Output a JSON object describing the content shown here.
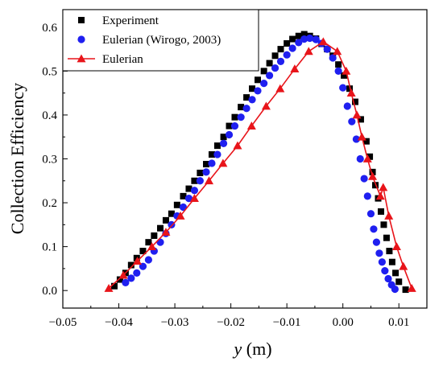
{
  "chart_data": {
    "type": "scatter",
    "xlabel": {
      "symbol": "y",
      "unit": " (m)"
    },
    "ylabel": "Collection Efficiency",
    "xlim": [
      -0.05,
      0.015
    ],
    "ylim": [
      -0.04,
      0.64
    ],
    "xticks": [
      -0.05,
      -0.04,
      -0.03,
      -0.02,
      -0.01,
      0.0,
      0.01
    ],
    "xtick_labels": [
      "−0.05",
      "−0.04",
      "−0.03",
      "−0.02",
      "−0.01",
      "0.00",
      "0.01"
    ],
    "yticks": [
      0.0,
      0.1,
      0.2,
      0.3,
      0.4,
      0.5,
      0.6
    ],
    "ytick_labels": [
      "0.0",
      "0.1",
      "0.2",
      "0.3",
      "0.4",
      "0.5",
      "0.6"
    ],
    "grid": false,
    "legend_position": "top-left",
    "series": [
      {
        "name": "Experiment",
        "marker": "square",
        "color": "#000000",
        "line": false,
        "points": [
          [
            -0.0408,
            0.01
          ],
          [
            -0.0398,
            0.025
          ],
          [
            -0.0388,
            0.04
          ],
          [
            -0.0378,
            0.058
          ],
          [
            -0.0368,
            0.074
          ],
          [
            -0.0357,
            0.09
          ],
          [
            -0.0347,
            0.11
          ],
          [
            -0.0337,
            0.125
          ],
          [
            -0.0326,
            0.142
          ],
          [
            -0.0316,
            0.16
          ],
          [
            -0.0306,
            0.175
          ],
          [
            -0.0296,
            0.195
          ],
          [
            -0.0285,
            0.215
          ],
          [
            -0.0275,
            0.232
          ],
          [
            -0.0265,
            0.25
          ],
          [
            -0.0255,
            0.268
          ],
          [
            -0.0244,
            0.288
          ],
          [
            -0.0234,
            0.31
          ],
          [
            -0.0224,
            0.33
          ],
          [
            -0.0213,
            0.35
          ],
          [
            -0.0203,
            0.375
          ],
          [
            -0.0193,
            0.395
          ],
          [
            -0.0182,
            0.418
          ],
          [
            -0.0172,
            0.44
          ],
          [
            -0.0162,
            0.46
          ],
          [
            -0.0152,
            0.48
          ],
          [
            -0.0141,
            0.5
          ],
          [
            -0.0131,
            0.518
          ],
          [
            -0.0121,
            0.535
          ],
          [
            -0.0111,
            0.55
          ],
          [
            -0.01,
            0.563
          ],
          [
            -0.009,
            0.573
          ],
          [
            -0.0079,
            0.58
          ],
          [
            -0.0069,
            0.584
          ],
          [
            -0.0059,
            0.58
          ],
          [
            -0.0048,
            0.574
          ],
          [
            -0.0038,
            0.562
          ],
          [
            -0.0028,
            0.55
          ],
          [
            -0.0018,
            0.535
          ],
          [
            -0.0008,
            0.515
          ],
          [
            0.0002,
            0.49
          ],
          [
            0.0012,
            0.46
          ],
          [
            0.0022,
            0.43
          ],
          [
            0.0032,
            0.39
          ],
          [
            0.0042,
            0.34
          ],
          [
            0.0048,
            0.305
          ],
          [
            0.0053,
            0.27
          ],
          [
            0.0058,
            0.24
          ],
          [
            0.0063,
            0.21
          ],
          [
            0.0068,
            0.18
          ],
          [
            0.0073,
            0.15
          ],
          [
            0.0078,
            0.12
          ],
          [
            0.0083,
            0.09
          ],
          [
            0.0088,
            0.065
          ],
          [
            0.0094,
            0.04
          ],
          [
            0.01,
            0.02
          ],
          [
            0.0112,
            0.002
          ]
        ]
      },
      {
        "name": "Eulerian (Wirogo, 2003)",
        "marker": "circle",
        "color": "#1f1ff0",
        "line": false,
        "points": [
          [
            -0.0388,
            0.018
          ],
          [
            -0.0378,
            0.028
          ],
          [
            -0.0368,
            0.04
          ],
          [
            -0.0357,
            0.055
          ],
          [
            -0.0347,
            0.07
          ],
          [
            -0.0337,
            0.09
          ],
          [
            -0.0326,
            0.11
          ],
          [
            -0.0316,
            0.13
          ],
          [
            -0.0306,
            0.15
          ],
          [
            -0.0296,
            0.17
          ],
          [
            -0.0285,
            0.19
          ],
          [
            -0.0275,
            0.21
          ],
          [
            -0.0265,
            0.228
          ],
          [
            -0.0255,
            0.25
          ],
          [
            -0.0244,
            0.27
          ],
          [
            -0.0234,
            0.29
          ],
          [
            -0.0224,
            0.31
          ],
          [
            -0.0213,
            0.335
          ],
          [
            -0.0203,
            0.355
          ],
          [
            -0.0193,
            0.375
          ],
          [
            -0.0182,
            0.395
          ],
          [
            -0.0172,
            0.415
          ],
          [
            -0.0162,
            0.435
          ],
          [
            -0.0152,
            0.455
          ],
          [
            -0.0141,
            0.472
          ],
          [
            -0.0131,
            0.49
          ],
          [
            -0.0121,
            0.507
          ],
          [
            -0.0111,
            0.522
          ],
          [
            -0.01,
            0.537
          ],
          [
            -0.009,
            0.552
          ],
          [
            -0.0079,
            0.565
          ],
          [
            -0.0069,
            0.573
          ],
          [
            -0.0059,
            0.575
          ],
          [
            -0.0048,
            0.572
          ],
          [
            -0.0038,
            0.563
          ],
          [
            -0.0028,
            0.55
          ],
          [
            -0.0018,
            0.53
          ],
          [
            -0.0008,
            0.5
          ],
          [
            0.0,
            0.462
          ],
          [
            0.0008,
            0.42
          ],
          [
            0.0016,
            0.385
          ],
          [
            0.0024,
            0.345
          ],
          [
            0.0031,
            0.3
          ],
          [
            0.0038,
            0.255
          ],
          [
            0.0044,
            0.215
          ],
          [
            0.005,
            0.175
          ],
          [
            0.0055,
            0.14
          ],
          [
            0.006,
            0.11
          ],
          [
            0.0065,
            0.085
          ],
          [
            0.007,
            0.065
          ],
          [
            0.0075,
            0.045
          ],
          [
            0.0081,
            0.027
          ],
          [
            0.0087,
            0.013
          ],
          [
            0.0093,
            0.003
          ]
        ]
      },
      {
        "name": "Eulerian",
        "marker": "triangle",
        "color": "#e8141a",
        "line": true,
        "points": [
          [
            -0.0418,
            0.005
          ],
          [
            -0.0392,
            0.035
          ],
          [
            -0.0367,
            0.067
          ],
          [
            -0.0341,
            0.1
          ],
          [
            -0.0316,
            0.133
          ],
          [
            -0.029,
            0.17
          ],
          [
            -0.0265,
            0.21
          ],
          [
            -0.0239,
            0.25
          ],
          [
            -0.0214,
            0.29
          ],
          [
            -0.0188,
            0.33
          ],
          [
            -0.0163,
            0.375
          ],
          [
            -0.0137,
            0.42
          ],
          [
            -0.0112,
            0.46
          ],
          [
            -0.0086,
            0.505
          ],
          [
            -0.0061,
            0.545
          ],
          [
            -0.0035,
            0.567
          ],
          [
            -0.001,
            0.545
          ],
          [
            0.0006,
            0.5
          ],
          [
            0.0015,
            0.45
          ],
          [
            0.0025,
            0.4
          ],
          [
            0.0034,
            0.35
          ],
          [
            0.0044,
            0.3
          ],
          [
            0.0053,
            0.26
          ],
          [
            0.0067,
            0.215
          ],
          [
            0.0072,
            0.235
          ],
          [
            0.0082,
            0.17
          ],
          [
            0.0096,
            0.1
          ],
          [
            0.0108,
            0.055
          ],
          [
            0.0123,
            0.005
          ]
        ]
      }
    ]
  }
}
